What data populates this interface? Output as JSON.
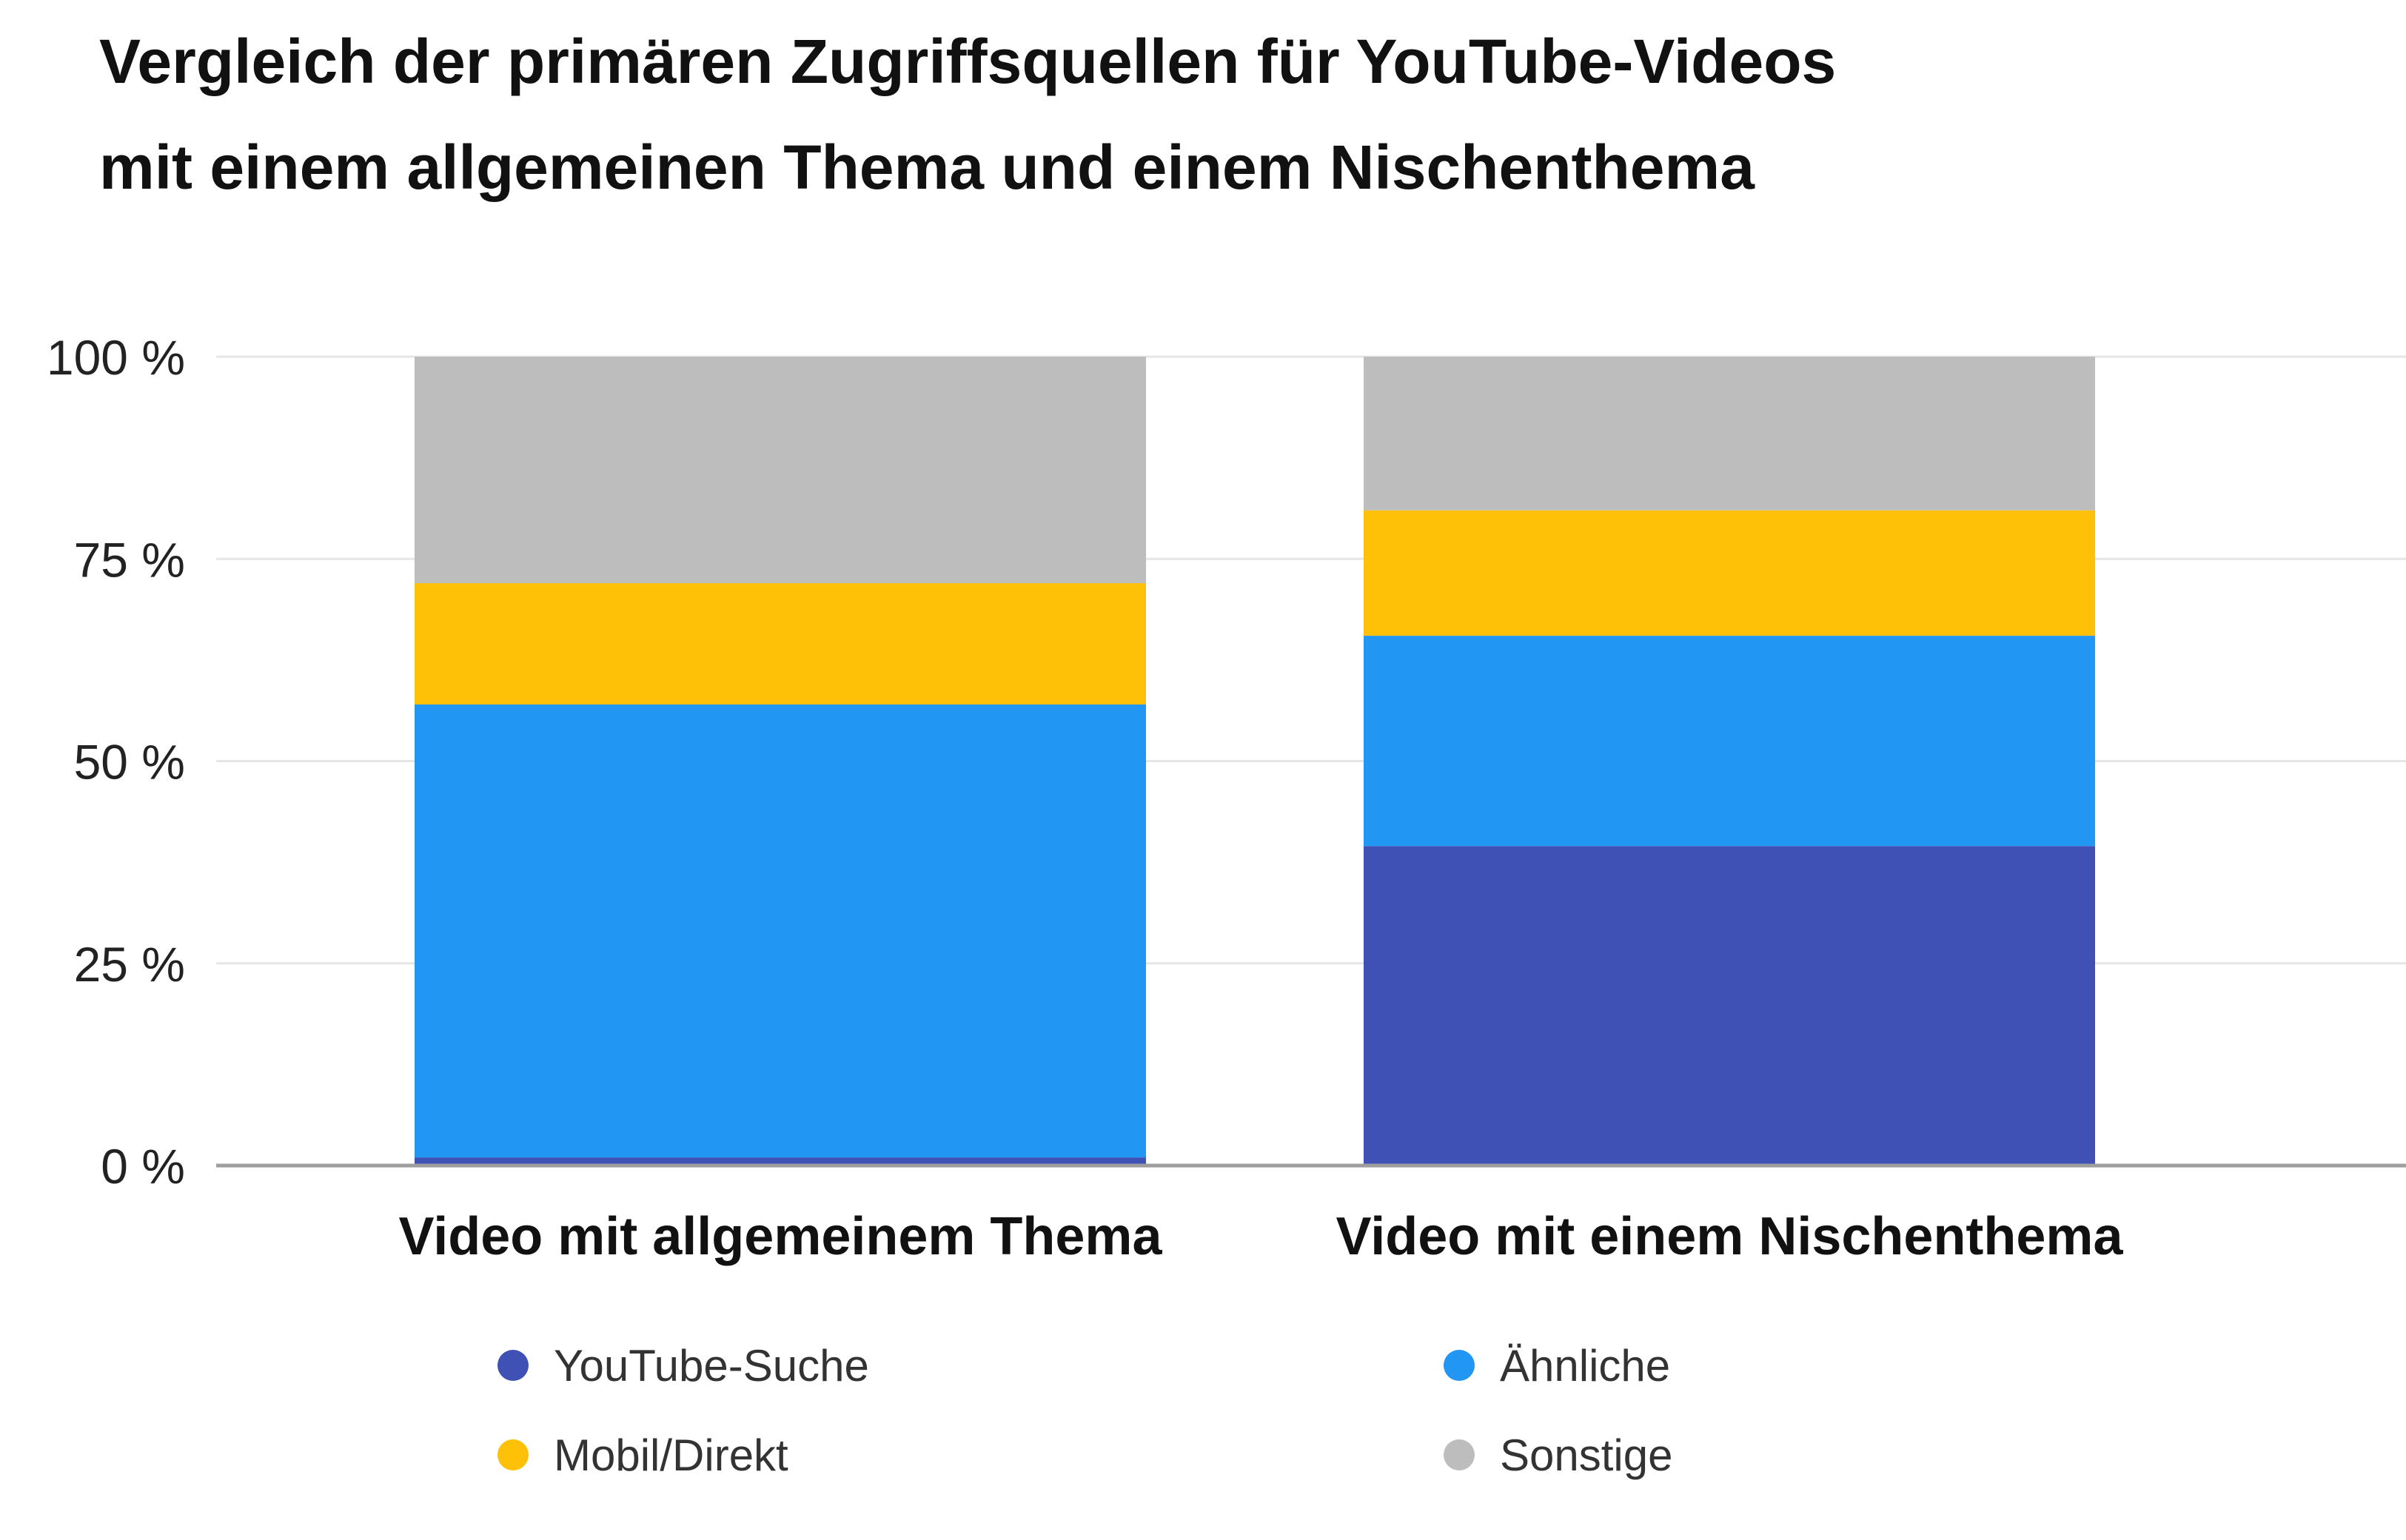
{
  "chart_data": {
    "type": "bar",
    "stacked": true,
    "title_lines": [
      "Vergleich der primären Zugriffsquellen für YouTube-Videos",
      "mit einem allgemeinen Thema und einem Nischenthema"
    ],
    "categories": [
      "Video mit allgemeinem Thema",
      "Video mit einem Nischenthema"
    ],
    "series": [
      {
        "name": "YouTube-Suche",
        "color": "#3F51B5",
        "values": [
          1,
          39.5
        ]
      },
      {
        "name": "Ähnliche",
        "color": "#2196F3",
        "values": [
          56,
          26
        ]
      },
      {
        "name": "Mobil/Direkt",
        "color": "#FFC107",
        "values": [
          15,
          15.5
        ]
      },
      {
        "name": "Sonstige",
        "color": "#BDBDBD",
        "values": [
          28,
          19
        ]
      }
    ],
    "y_ticks": [
      "0 %",
      "25 %",
      "50 %",
      "75 %",
      "100 %"
    ],
    "y_tick_values": [
      0,
      25,
      50,
      75,
      100
    ],
    "ylim": [
      0,
      100
    ],
    "grid": true,
    "legend_position": "bottom"
  }
}
